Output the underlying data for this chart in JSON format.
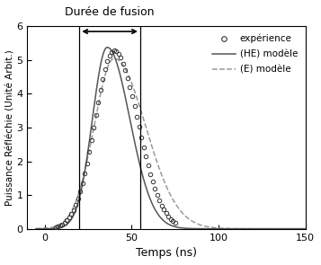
{
  "title": "Durée de fusion",
  "xlabel": "Temps (ns)",
  "ylabel": "Puissance Réfléchie (Unité Arbit.)",
  "xlim": [
    -10,
    150
  ],
  "ylim": [
    0,
    6
  ],
  "xticks": [
    0,
    50,
    100,
    150
  ],
  "yticks": [
    0,
    1,
    2,
    3,
    4,
    5,
    6
  ],
  "fusion_start": 20,
  "fusion_end": 55,
  "exp_peak_x": 40,
  "exp_peak_y": 5.28,
  "exp_rise": 11.0,
  "exp_fall": 13.5,
  "he_peak_x": 36,
  "he_peak_y": 5.38,
  "he_rise": 8.5,
  "he_fall": 13.0,
  "e_peak_x": 40,
  "e_peak_y": 5.05,
  "e_rise": 11.5,
  "e_fall": 18.0,
  "legend_labels": [
    "expérience",
    "(HE) modèle",
    "(E) modèle"
  ],
  "background_color": "#ffffff",
  "circle_color": "#333333",
  "he_color": "#555555",
  "e_color": "#999999"
}
